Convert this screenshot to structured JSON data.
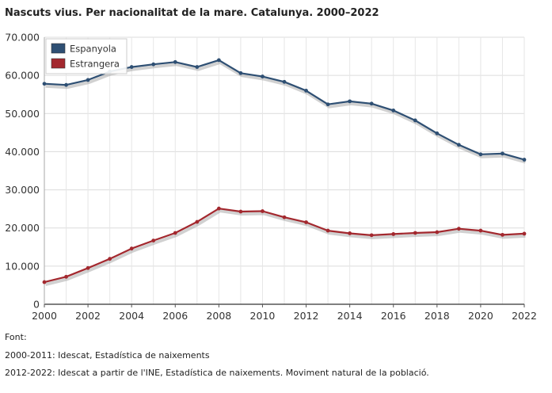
{
  "chart_data": {
    "type": "line",
    "title": "Nascuts vius. Per nacionalitat de la mare. Catalunya. 2000–2022",
    "xlabel": "",
    "ylabel": "",
    "x": [
      2000,
      2001,
      2002,
      2003,
      2004,
      2005,
      2006,
      2007,
      2008,
      2009,
      2010,
      2011,
      2012,
      2013,
      2014,
      2015,
      2016,
      2017,
      2018,
      2019,
      2020,
      2021,
      2022
    ],
    "x_tick_labels": [
      "2000",
      "2002",
      "2004",
      "2006",
      "2008",
      "2010",
      "2012",
      "2014",
      "2016",
      "2018",
      "2020",
      "2022"
    ],
    "y_tick_labels": [
      "0",
      "10.000",
      "20.000",
      "30.000",
      "40.000",
      "50.000",
      "60.000",
      "70.000"
    ],
    "ylim": [
      0,
      70000
    ],
    "grid": true,
    "legend_position": "top-left",
    "series": [
      {
        "name": "Espanyola",
        "color": "#2e4f73",
        "values": [
          57800,
          57500,
          58800,
          61000,
          62200,
          62900,
          63500,
          62200,
          64000,
          60600,
          59700,
          58300,
          56000,
          52400,
          53200,
          52600,
          50800,
          48200,
          44800,
          41800,
          39300,
          39500,
          37900
        ]
      },
      {
        "name": "Estrangera",
        "color": "#a3282e",
        "values": [
          5800,
          7200,
          9500,
          11900,
          14600,
          16700,
          18700,
          21600,
          25100,
          24300,
          24400,
          22800,
          21500,
          19300,
          18600,
          18100,
          18400,
          18700,
          18900,
          19800,
          19300,
          18200,
          18500
        ]
      }
    ]
  },
  "source": {
    "label": "Font:",
    "line1": "2000-2011: Idescat, Estadística de naixements",
    "line2": "2012-2022: Idescat a partir de l'INE, Estadística de naixements. Moviment natural de la població."
  }
}
